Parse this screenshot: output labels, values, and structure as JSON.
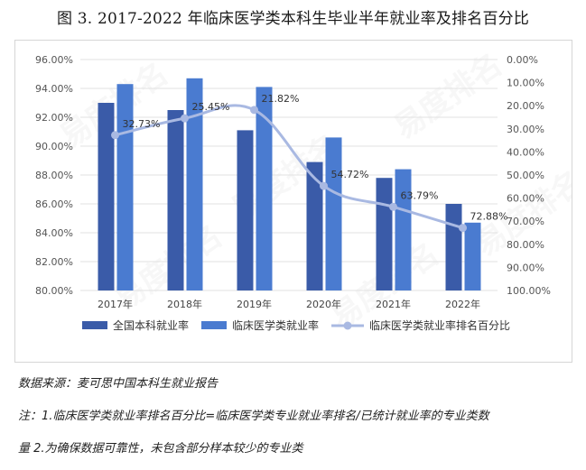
{
  "title": "图 3. 2017-2022 年临床医学类本科生毕业半年就业率及排名百分比",
  "chart_data": {
    "type": "bar",
    "categories": [
      "2017年",
      "2018年",
      "2019年",
      "2020年",
      "2021年",
      "2022年"
    ],
    "series": [
      {
        "name": "全国本科就业率",
        "kind": "bar",
        "axis": "left",
        "color": "#3a5ba8",
        "values": [
          93.0,
          92.5,
          91.1,
          88.9,
          87.8,
          86.0
        ]
      },
      {
        "name": "临床医学类就业率",
        "kind": "bar",
        "axis": "left",
        "color": "#4a7bd0",
        "values": [
          94.3,
          94.7,
          94.1,
          90.6,
          88.4,
          84.7
        ]
      },
      {
        "name": "临床医学类就业率排名百分比",
        "kind": "line",
        "axis": "right",
        "color": "#a9b9e2",
        "values": [
          32.73,
          25.45,
          21.82,
          54.72,
          63.79,
          72.88
        ],
        "labels": [
          "32.73%",
          "25.45%",
          "21.82%",
          "54.72%",
          "63.79%",
          "72.88%"
        ]
      }
    ],
    "left_axis": {
      "min": 80,
      "max": 96,
      "ticks": [
        "80.00%",
        "82.00%",
        "84.00%",
        "86.00%",
        "88.00%",
        "90.00%",
        "92.00%",
        "94.00%",
        "96.00%"
      ]
    },
    "right_axis": {
      "min": 0,
      "max": 100,
      "reversed": true,
      "ticks": [
        "0.00%",
        "10.00%",
        "20.00%",
        "30.00%",
        "40.00%",
        "50.00%",
        "60.00%",
        "70.00%",
        "80.00%",
        "90.00%",
        "100.00%"
      ]
    },
    "grid": true,
    "legend_position": "bottom"
  },
  "notes": {
    "source": "数据来源：麦可思中国本科生就业报告",
    "note1": "注：1.临床医学类就业率排名百分比=临床医学类专业就业率排名/已统计就业率的专业类数",
    "note2": "量 2.为确保数据可靠性，未包含部分样本较少的专业类"
  },
  "watermark": "易度排名"
}
